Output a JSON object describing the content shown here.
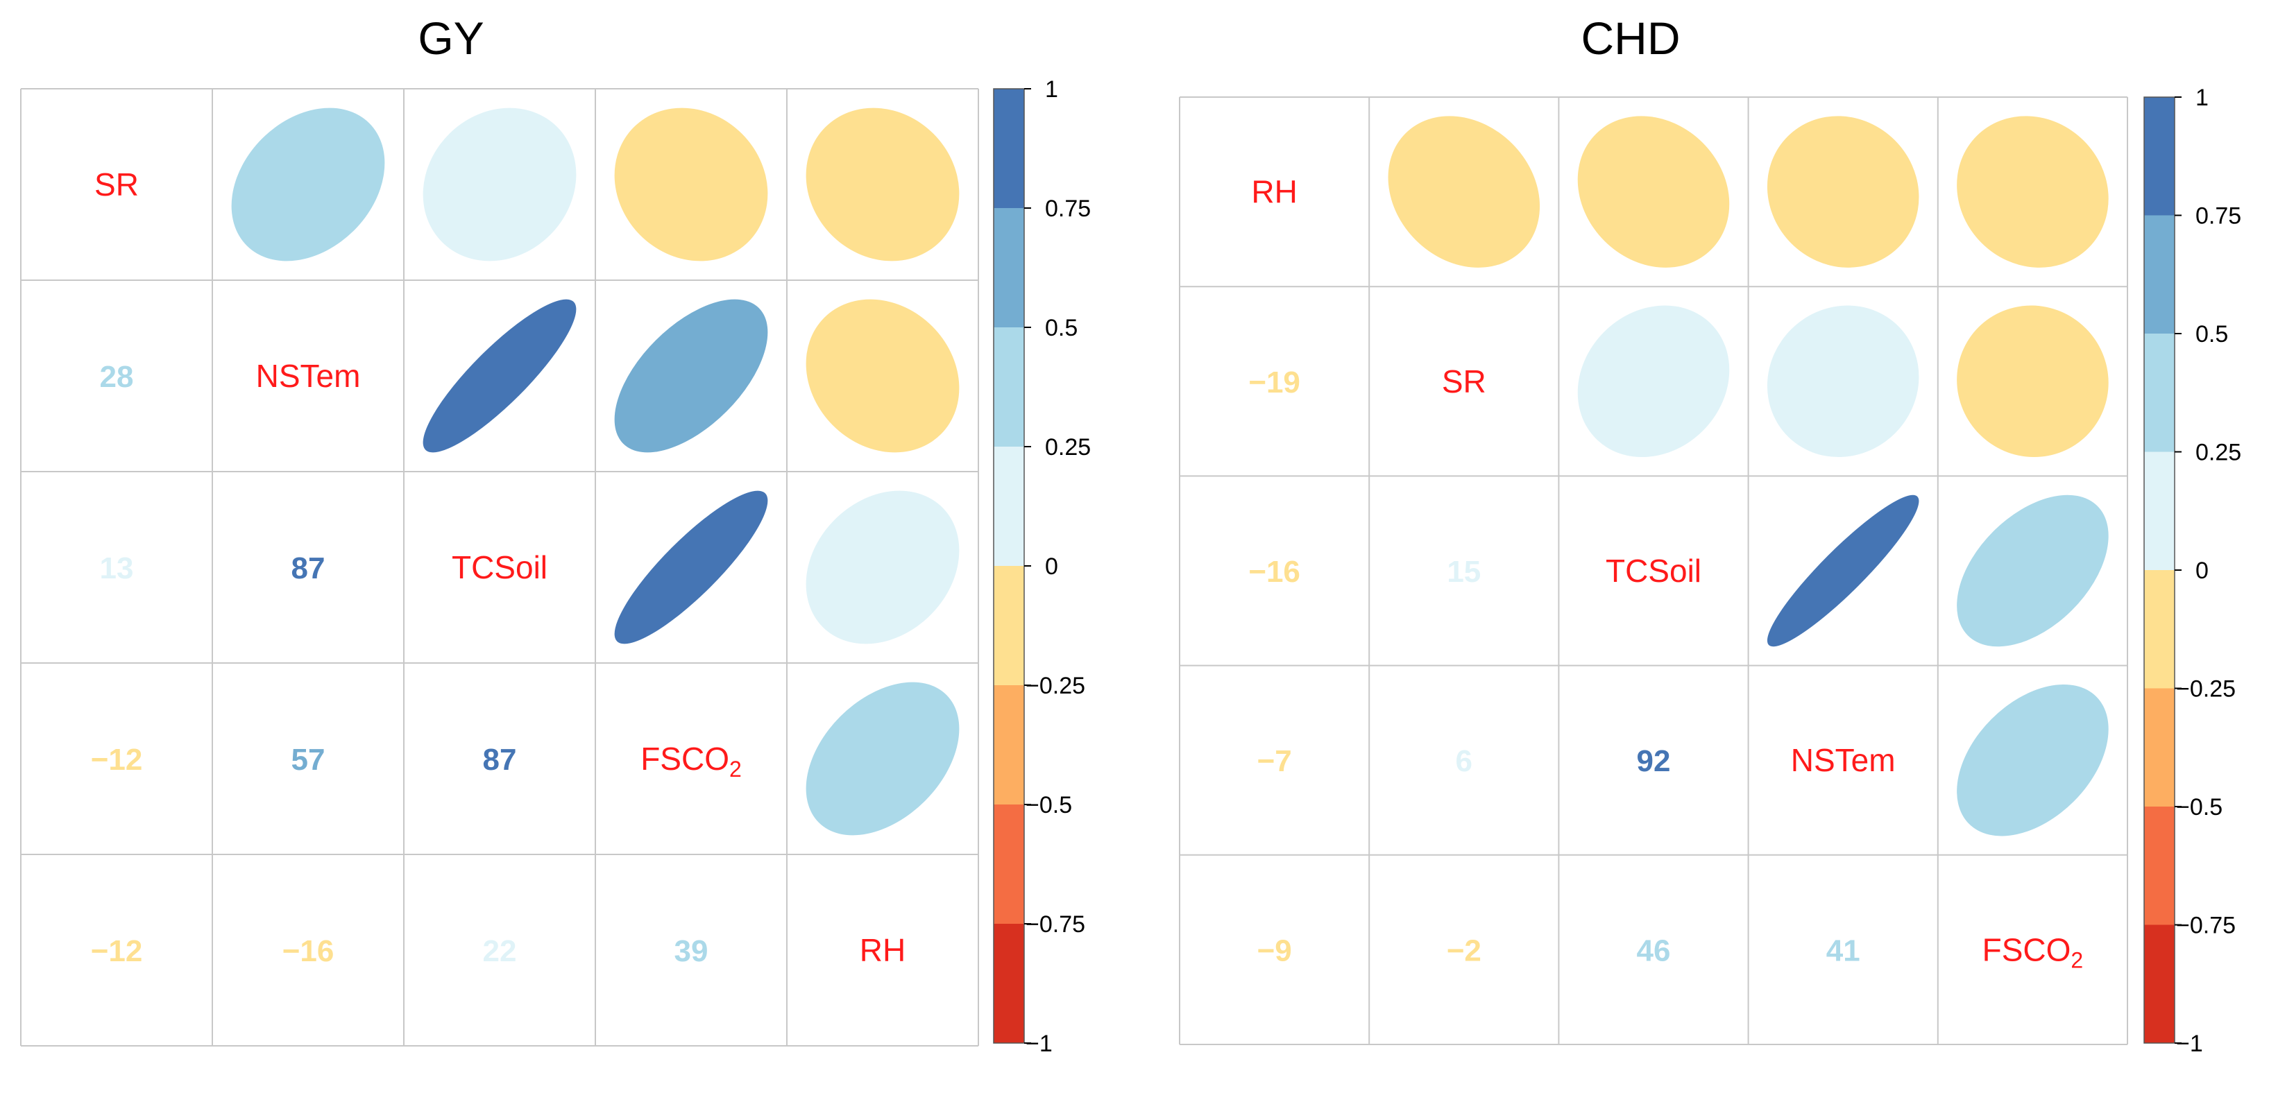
{
  "colors": {
    "grid": "#c8c8c8",
    "diag_text": "#ff1a1a",
    "scale": [
      {
        "from": -1.0,
        "to": -0.75,
        "color": "#d7301f"
      },
      {
        "from": -0.75,
        "to": -0.5,
        "color": "#f46d43"
      },
      {
        "from": -0.5,
        "to": -0.25,
        "color": "#fdae61"
      },
      {
        "from": -0.25,
        "to": 0.0,
        "color": "#fee090"
      },
      {
        "from": 0.0,
        "to": 0.25,
        "color": "#e0f3f8"
      },
      {
        "from": 0.25,
        "to": 0.5,
        "color": "#abd9e9"
      },
      {
        "from": 0.5,
        "to": 0.75,
        "color": "#74add1"
      },
      {
        "from": 0.75,
        "to": 1.0,
        "color": "#4575b4"
      }
    ]
  },
  "chart_data": [
    {
      "type": "heatmap",
      "title": "GY",
      "variables": [
        "SR",
        "NSTem",
        "TCSoil",
        "FSCO2",
        "RH"
      ],
      "variable_labels": [
        {
          "main": "SR",
          "sub": ""
        },
        {
          "main": "NSTem",
          "sub": ""
        },
        {
          "main": "TCSoil",
          "sub": ""
        },
        {
          "main": "FSCO",
          "sub": "2"
        },
        {
          "main": "RH",
          "sub": ""
        }
      ],
      "matrix": [
        [
          1.0,
          0.28,
          0.13,
          -0.12,
          -0.12
        ],
        [
          0.28,
          1.0,
          0.87,
          0.57,
          -0.16
        ],
        [
          0.13,
          0.87,
          1.0,
          0.87,
          0.22
        ],
        [
          -0.12,
          0.57,
          0.87,
          1.0,
          0.39
        ],
        [
          -0.12,
          -0.16,
          0.22,
          0.39,
          1.0
        ]
      ],
      "lower_labels": [
        [
          "",
          "",
          "",
          "",
          ""
        ],
        [
          "28",
          "",
          "",
          "",
          ""
        ],
        [
          "13",
          "87",
          "",
          "",
          ""
        ],
        [
          "−12",
          "57",
          "87",
          "",
          ""
        ],
        [
          "−12",
          "−16",
          "22",
          "39",
          ""
        ]
      ],
      "upper": "ellipse",
      "lower": "number",
      "legend": {
        "position": "right",
        "range": [
          -1,
          1
        ],
        "ticks": [
          "1",
          "0.75",
          "0.5",
          "0.25",
          "0",
          "−0.25",
          "−0.5",
          "−0.75",
          "−1"
        ],
        "tick_values": [
          1,
          0.75,
          0.5,
          0.25,
          0,
          -0.25,
          -0.5,
          -0.75,
          -1
        ]
      }
    },
    {
      "type": "heatmap",
      "title": "CHD",
      "variables": [
        "RH",
        "SR",
        "TCSoil",
        "NSTem",
        "FSCO2"
      ],
      "variable_labels": [
        {
          "main": "RH",
          "sub": ""
        },
        {
          "main": "SR",
          "sub": ""
        },
        {
          "main": "TCSoil",
          "sub": ""
        },
        {
          "main": "NSTem",
          "sub": ""
        },
        {
          "main": "FSCO",
          "sub": "2"
        }
      ],
      "matrix": [
        [
          1.0,
          -0.19,
          -0.16,
          -0.07,
          -0.09
        ],
        [
          -0.19,
          1.0,
          0.15,
          0.06,
          -0.02
        ],
        [
          -0.16,
          0.15,
          1.0,
          0.92,
          0.46
        ],
        [
          -0.07,
          0.06,
          0.92,
          1.0,
          0.41
        ],
        [
          -0.09,
          -0.02,
          0.46,
          0.41,
          1.0
        ]
      ],
      "lower_labels": [
        [
          "",
          "",
          "",
          "",
          ""
        ],
        [
          "−19",
          "",
          "",
          "",
          ""
        ],
        [
          "−16",
          "15",
          "",
          "",
          ""
        ],
        [
          "−7",
          "6",
          "92",
          "",
          ""
        ],
        [
          "−9",
          "−2",
          "46",
          "41",
          ""
        ]
      ],
      "upper": "ellipse",
      "lower": "number",
      "legend": {
        "position": "right",
        "range": [
          -1,
          1
        ],
        "ticks": [
          "1",
          "0.75",
          "0.5",
          "0.25",
          "0",
          "−0.25",
          "−0.5",
          "−0.75",
          "−1"
        ],
        "tick_values": [
          1,
          0.75,
          0.5,
          0.25,
          0,
          -0.25,
          -0.5,
          -0.75,
          -1
        ]
      }
    }
  ]
}
